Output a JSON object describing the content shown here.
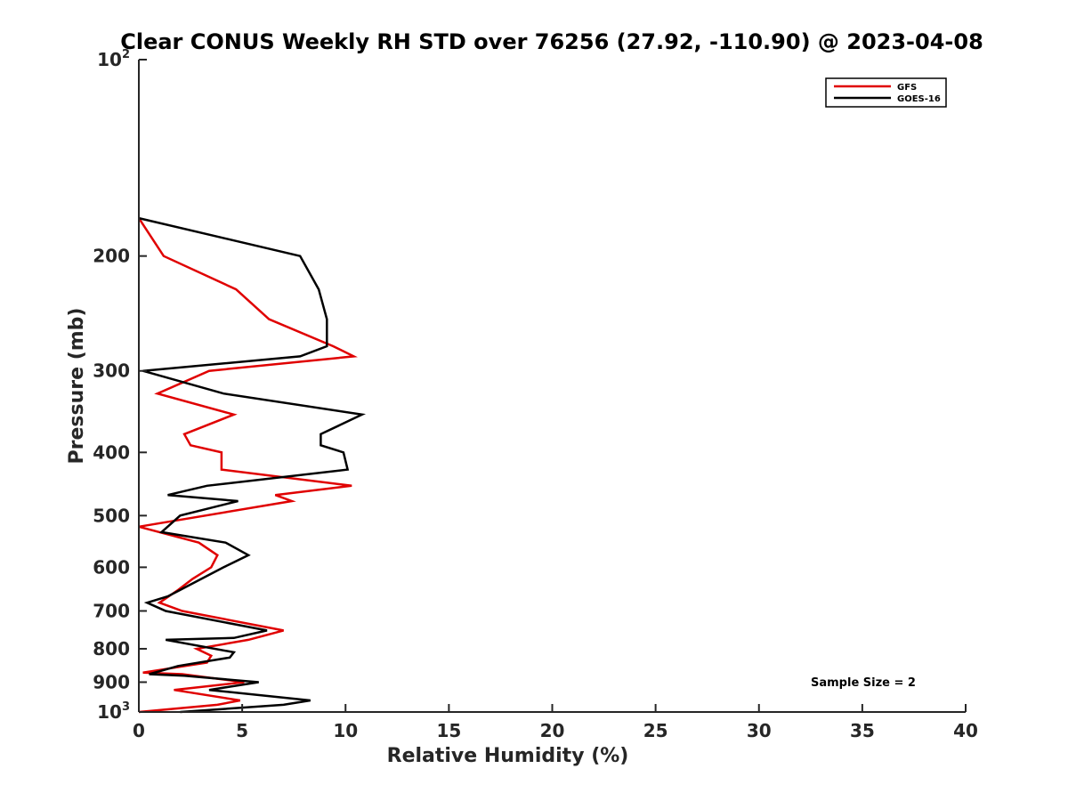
{
  "chart_data": {
    "type": "line",
    "title": "Clear CONUS Weekly RH STD over 76256 (27.92, -110.90) @ 2023-04-08",
    "xlabel": "Relative Humidity (%)",
    "ylabel": "Pressure (mb)",
    "xlim": [
      0,
      40
    ],
    "ylim": [
      100,
      1000
    ],
    "yscale": "log",
    "y_reversed": true,
    "x_ticks": [
      0,
      5,
      10,
      15,
      20,
      25,
      30,
      35,
      40
    ],
    "x_tick_labels": [
      "0",
      "5",
      "10",
      "15",
      "20",
      "25",
      "30",
      "35",
      "40"
    ],
    "y_ticks": [
      {
        "value": 100,
        "base": "10",
        "exp": "2"
      },
      {
        "value": 200,
        "label": "200"
      },
      {
        "value": 300,
        "label": "300"
      },
      {
        "value": 400,
        "label": "400"
      },
      {
        "value": 500,
        "label": "500"
      },
      {
        "value": 600,
        "label": "600"
      },
      {
        "value": 700,
        "label": "700"
      },
      {
        "value": 800,
        "label": "800"
      },
      {
        "value": 900,
        "label": "900"
      },
      {
        "value": 1000,
        "base": "10",
        "exp": "3"
      }
    ],
    "legend_position": "top-right",
    "annotation": "Sample Size = 2",
    "series": [
      {
        "name": "GFS",
        "color": "#e00000",
        "points": [
          [
            0.0,
            175
          ],
          [
            1.2,
            200
          ],
          [
            4.7,
            225
          ],
          [
            6.3,
            250
          ],
          [
            9.4,
            275
          ],
          [
            10.4,
            285
          ],
          [
            3.4,
            300
          ],
          [
            0.9,
            325
          ],
          [
            4.6,
            350
          ],
          [
            2.2,
            375
          ],
          [
            2.5,
            390
          ],
          [
            4.0,
            400
          ],
          [
            4.0,
            425
          ],
          [
            10.3,
            450
          ],
          [
            6.6,
            465
          ],
          [
            7.4,
            475
          ],
          [
            0.0,
            520
          ],
          [
            2.9,
            550
          ],
          [
            3.8,
            575
          ],
          [
            3.5,
            600
          ],
          [
            2.6,
            625
          ],
          [
            1.9,
            650
          ],
          [
            1.0,
            680
          ],
          [
            2.1,
            700
          ],
          [
            7.0,
            750
          ],
          [
            5.3,
            775
          ],
          [
            2.8,
            800
          ],
          [
            3.5,
            820
          ],
          [
            3.3,
            840
          ],
          [
            0.2,
            870
          ],
          [
            2.1,
            875
          ],
          [
            5.1,
            900
          ],
          [
            1.7,
            925
          ],
          [
            4.9,
            960
          ],
          [
            3.8,
            975
          ],
          [
            0.0,
            1000
          ]
        ]
      },
      {
        "name": "GOES-16",
        "color": "#000000",
        "points": [
          [
            0.0,
            175
          ],
          [
            7.8,
            200
          ],
          [
            8.7,
            225
          ],
          [
            9.1,
            250
          ],
          [
            9.1,
            275
          ],
          [
            7.8,
            285
          ],
          [
            0.2,
            300
          ],
          [
            4.1,
            325
          ],
          [
            10.8,
            350
          ],
          [
            8.8,
            375
          ],
          [
            8.8,
            390
          ],
          [
            9.9,
            400
          ],
          [
            10.1,
            425
          ],
          [
            3.3,
            450
          ],
          [
            1.4,
            465
          ],
          [
            4.8,
            475
          ],
          [
            2.0,
            500
          ],
          [
            1.1,
            530
          ],
          [
            4.2,
            550
          ],
          [
            5.3,
            575
          ],
          [
            4.1,
            600
          ],
          [
            2.0,
            650
          ],
          [
            1.4,
            665
          ],
          [
            0.4,
            680
          ],
          [
            1.3,
            700
          ],
          [
            6.2,
            750
          ],
          [
            4.6,
            770
          ],
          [
            1.3,
            775
          ],
          [
            4.6,
            810
          ],
          [
            4.4,
            825
          ],
          [
            1.9,
            850
          ],
          [
            0.5,
            875
          ],
          [
            2.2,
            880
          ],
          [
            5.8,
            900
          ],
          [
            3.4,
            925
          ],
          [
            8.3,
            960
          ],
          [
            7.0,
            975
          ],
          [
            2.0,
            1000
          ]
        ]
      }
    ]
  }
}
